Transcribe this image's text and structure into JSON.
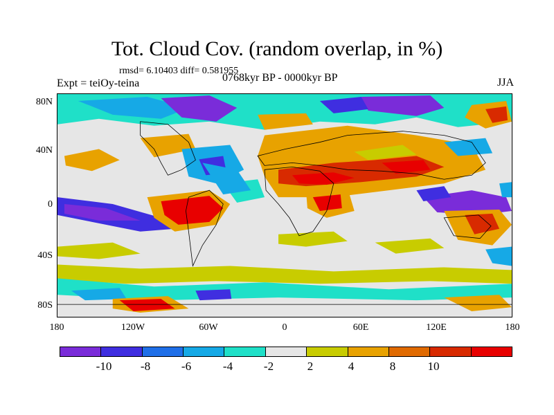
{
  "title": "Tot. Cloud Cov. (random overlap, in %)",
  "stats": "rmsd= 6.10403  diff= 0.581955",
  "expt": "Expt = teiOy-teina",
  "period": "0768kyr BP - 0000kyr BP",
  "season": "JJA",
  "lat_labels": [
    "80N",
    "40N",
    "0",
    "40S",
    "80S"
  ],
  "lon_labels": [
    "180",
    "120W",
    "60W",
    "0",
    "60E",
    "120E",
    "180"
  ],
  "colorbar": {
    "labels": [
      "-10",
      "-8",
      "-6",
      "-4",
      "-2",
      "2",
      "4",
      "8",
      "10"
    ],
    "colors": [
      "#7a2cd9",
      "#3f2ee0",
      "#1f6fe8",
      "#16a9e6",
      "#1fe0c8",
      "#e6e6e6",
      "#c8cc00",
      "#e8a200",
      "#e06a00",
      "#d82a00",
      "#e80000"
    ]
  }
}
